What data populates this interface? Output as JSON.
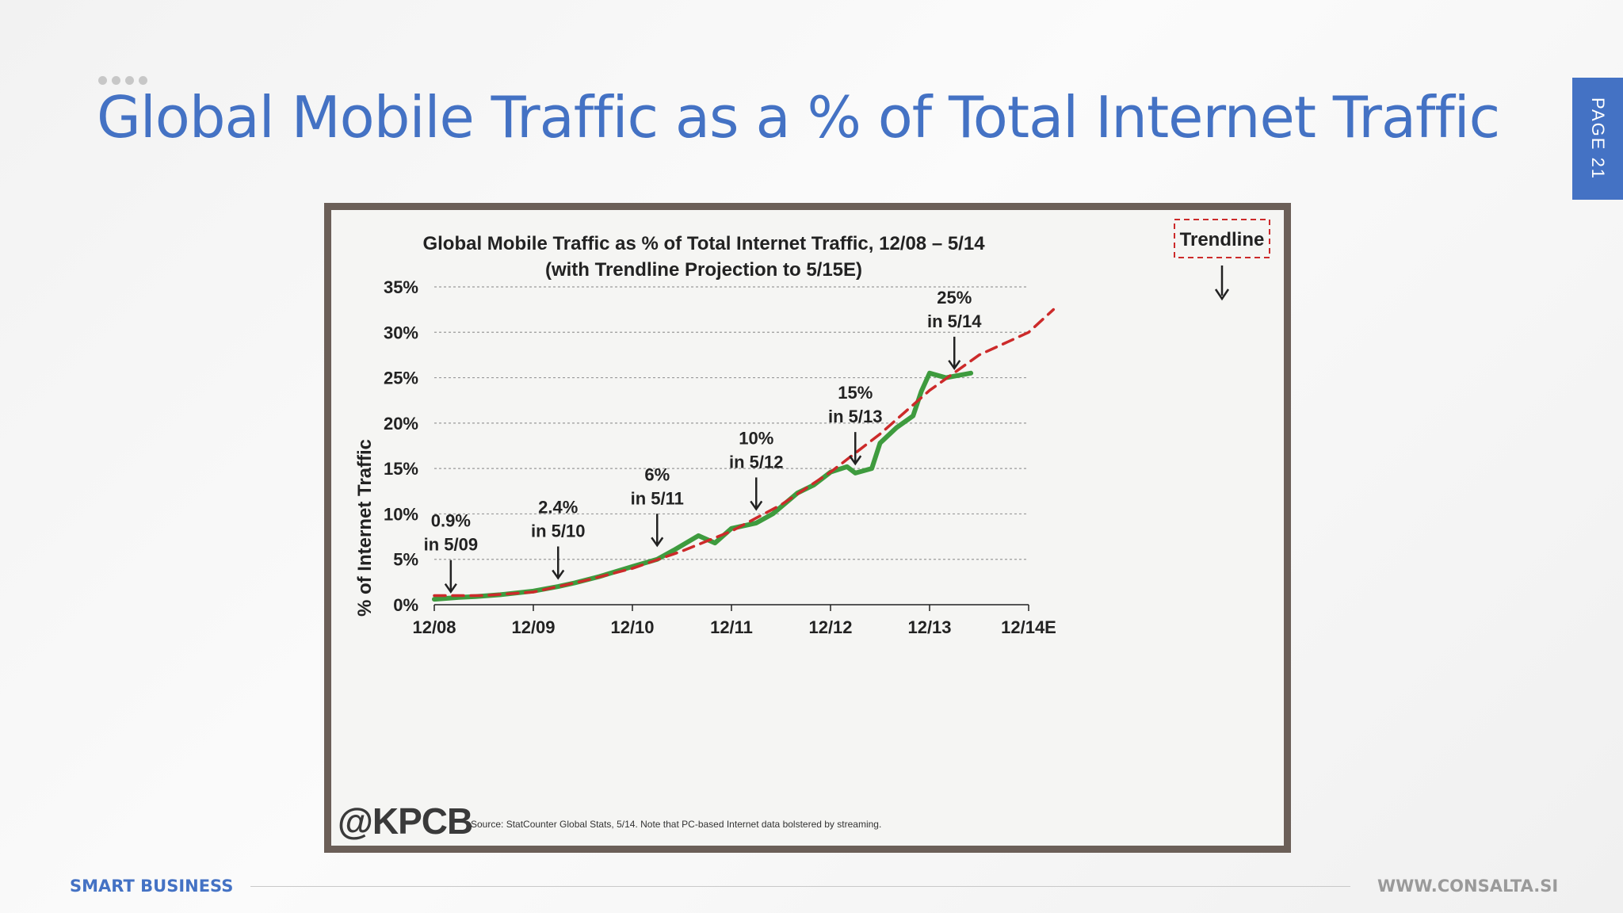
{
  "slide": {
    "title": "Global Mobile Traffic as a % of Total Internet Traffic",
    "page_tab": "PAGE 21",
    "footer_left": "SMART BUSINESS",
    "footer_right": "WWW.CONSALTA.SI",
    "accent_color": "#4472c4"
  },
  "chart_data": {
    "type": "line",
    "title": "Global Mobile Traffic as % of Total Internet Traffic, 12/08 – 5/14",
    "subtitle": "(with Trendline Projection to 5/15E)",
    "xlabel": "",
    "ylabel": "% of Internet Traffic",
    "x_ticks": [
      "12/08",
      "12/09",
      "12/10",
      "12/11",
      "12/12",
      "12/13",
      "12/14E"
    ],
    "y_ticks": [
      "0%",
      "5%",
      "10%",
      "15%",
      "20%",
      "25%",
      "30%",
      "35%"
    ],
    "xlim": [
      "2008-12",
      "2014-12"
    ],
    "ylim": [
      0,
      35
    ],
    "grid": "horizontal dashed",
    "series": [
      {
        "color": "#3e9b3e",
        "style": "solid",
        "points": [
          [
            "2008-12",
            0.6
          ],
          [
            "2009-03",
            0.8
          ],
          [
            "2009-05",
            0.9
          ],
          [
            "2009-08",
            1.1
          ],
          [
            "2009-12",
            1.5
          ],
          [
            "2010-03",
            2.0
          ],
          [
            "2010-05",
            2.4
          ],
          [
            "2010-08",
            3.1
          ],
          [
            "2010-12",
            4.2
          ],
          [
            "2011-03",
            5.0
          ],
          [
            "2011-05",
            6.0
          ],
          [
            "2011-08",
            7.6
          ],
          [
            "2011-10",
            6.8
          ],
          [
            "2011-12",
            8.4
          ],
          [
            "2012-03",
            9.0
          ],
          [
            "2012-05",
            10.0
          ],
          [
            "2012-08",
            12.3
          ],
          [
            "2012-10",
            13.2
          ],
          [
            "2012-12",
            14.6
          ],
          [
            "2013-02",
            15.2
          ],
          [
            "2013-03",
            14.5
          ],
          [
            "2013-05",
            15.0
          ],
          [
            "2013-06",
            17.8
          ],
          [
            "2013-08",
            19.5
          ],
          [
            "2013-10",
            20.8
          ],
          [
            "2013-11",
            23.5
          ],
          [
            "2013-12",
            25.5
          ],
          [
            "2014-02",
            25.0
          ],
          [
            "2014-05",
            25.5
          ]
        ]
      },
      {
        "name": "Trendline",
        "color": "#cc2a2a",
        "style": "dashed",
        "points": [
          [
            "2008-12",
            1.0
          ],
          [
            "2009-06",
            1.0
          ],
          [
            "2009-12",
            1.4
          ],
          [
            "2010-06",
            2.6
          ],
          [
            "2010-12",
            4.0
          ],
          [
            "2011-06",
            5.9
          ],
          [
            "2011-12",
            8.1
          ],
          [
            "2012-06",
            11.0
          ],
          [
            "2012-12",
            14.6
          ],
          [
            "2013-06",
            18.8
          ],
          [
            "2013-12",
            23.6
          ],
          [
            "2014-06",
            27.5
          ],
          [
            "2014-12",
            30.0
          ],
          [
            "2015-03",
            32.5
          ]
        ]
      }
    ],
    "annotations": [
      {
        "line1": "0.9%",
        "line2": "in 5/09",
        "x": "2009-02",
        "y": 0.9
      },
      {
        "line1": "2.4%",
        "line2": "in 5/10",
        "x": "2010-03",
        "y": 2.4
      },
      {
        "line1": "6%",
        "line2": "in 5/11",
        "x": "2011-03",
        "y": 6.0
      },
      {
        "line1": "10%",
        "line2": "in 5/12",
        "x": "2012-03",
        "y": 10.0
      },
      {
        "line1": "15%",
        "line2": "in 5/13",
        "x": "2013-03",
        "y": 15.0
      },
      {
        "line1": "25%",
        "line2": "in 5/14",
        "x": "2014-03",
        "y": 25.5
      }
    ],
    "legend_box": {
      "label": "Trendline",
      "placement": "top-right"
    },
    "logo": "@KPCB",
    "source": "Source: StatCounter Global Stats, 5/14. Note that PC-based Internet data bolstered by streaming."
  }
}
